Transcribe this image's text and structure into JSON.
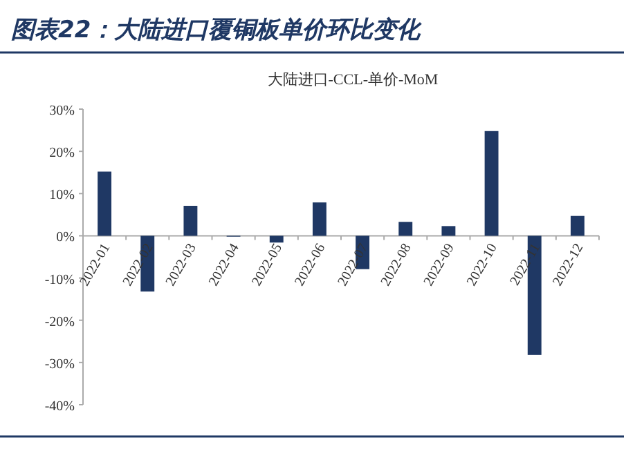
{
  "chart_data": {
    "type": "bar",
    "title": "图表22：大陆进口覆铜板单价环比变化",
    "subtitle": "大陆进口-CCL-单价-MoM",
    "categories": [
      "2022-01",
      "2022-02",
      "2022-03",
      "2022-04",
      "2022-05",
      "2022-06",
      "2022-07",
      "2022-08",
      "2022-09",
      "2022-10",
      "2022-11",
      "2022-12"
    ],
    "values": [
      15.2,
      -13.2,
      7.1,
      -0.2,
      -1.6,
      7.9,
      -7.9,
      3.3,
      2.3,
      24.8,
      -28.2,
      4.7
    ],
    "color": "#1f3864",
    "ylim": [
      -40,
      30
    ],
    "yticks": [
      {
        "value": -40,
        "label": "-40%"
      },
      {
        "value": -30,
        "label": "-30%"
      },
      {
        "value": -20,
        "label": "-20%"
      },
      {
        "value": -10,
        "label": "-10%"
      },
      {
        "value": 0,
        "label": "0%"
      },
      {
        "value": 10,
        "label": "10%"
      },
      {
        "value": 20,
        "label": "20%"
      },
      {
        "value": 30,
        "label": "30%"
      }
    ]
  }
}
